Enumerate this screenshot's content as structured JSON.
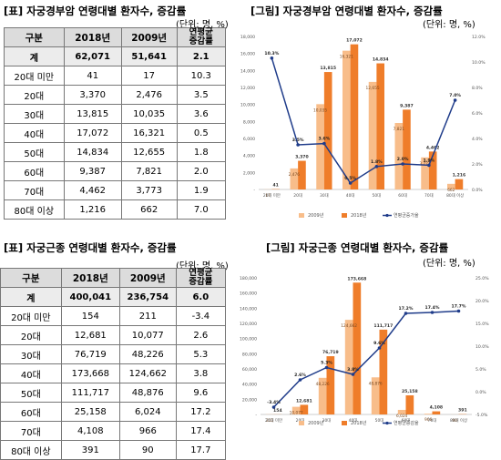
{
  "top_table": {
    "title": "[표] 자궁경부암 연령대별 환자수, 증감률",
    "unit": "(단위: 명, %)",
    "headers": [
      "구분",
      "2018년",
      "2009년",
      "연평균\n증감률"
    ],
    "total": [
      "계",
      "62,071",
      "51,641",
      "2.1"
    ],
    "rows": [
      [
        "20대 미만",
        "41",
        "17",
        "10.3"
      ],
      [
        "20대",
        "3,370",
        "2,476",
        "3.5"
      ],
      [
        "30대",
        "13,815",
        "10,035",
        "3.6"
      ],
      [
        "40대",
        "17,072",
        "16,321",
        "0.5"
      ],
      [
        "50대",
        "14,834",
        "12,655",
        "1.8"
      ],
      [
        "60대",
        "9,387",
        "7,821",
        "2.0"
      ],
      [
        "70대",
        "4,462",
        "3,773",
        "1.9"
      ],
      [
        "80대 이상",
        "1,216",
        "662",
        "7.0"
      ]
    ]
  },
  "bottom_table": {
    "title": "[표] 자궁근종 연령대별 환자수, 증감률",
    "unit": "(단위: 명, %)",
    "headers": [
      "구분",
      "2018년",
      "2009년",
      "연평균\n증감률"
    ],
    "total": [
      "계",
      "400,041",
      "236,754",
      "6.0"
    ],
    "rows": [
      [
        "20대 미만",
        "154",
        "211",
        "-3.4"
      ],
      [
        "20대",
        "12,681",
        "10,077",
        "2.6"
      ],
      [
        "30대",
        "76,719",
        "48,226",
        "5.3"
      ],
      [
        "40대",
        "173,668",
        "124,662",
        "3.8"
      ],
      [
        "50대",
        "111,717",
        "48,876",
        "9.6"
      ],
      [
        "60대",
        "25,158",
        "6,024",
        "17.2"
      ],
      [
        "70대",
        "4,108",
        "966",
        "17.4"
      ],
      [
        "80대 이상",
        "391",
        "90",
        "17.7"
      ]
    ]
  },
  "top_chart": {
    "title": "[그림] 자궁경부암 연령대별 환자수, 증감률",
    "unit": "(단위: 명, %)"
  },
  "bottom_chart": {
    "title": "[그림] 자궁근종 연령대별 환자수, 증감률",
    "unit": "(단위: 명, %)"
  },
  "chart_data": [
    {
      "type": "bar",
      "categories": [
        "20대 미만",
        "20대",
        "30대",
        "40대",
        "50대",
        "60대",
        "70대",
        "80대 이상"
      ],
      "series": [
        {
          "name": "2009년",
          "values": [
            17,
            2476,
            10035,
            16321,
            12655,
            7821,
            3773,
            662
          ],
          "color": "#f8bd8a"
        },
        {
          "name": "2018년",
          "values": [
            41,
            3370,
            13815,
            17072,
            14834,
            9387,
            4462,
            1216
          ],
          "color": "#ef7d2a"
        },
        {
          "name": "연평균증가율",
          "type": "line",
          "axis": "right",
          "values": [
            10.3,
            3.5,
            3.6,
            0.5,
            1.8,
            2.0,
            1.9,
            7.0
          ],
          "color": "#1f3c8a"
        }
      ],
      "bar_labels_2009": [
        "17",
        "2,476",
        "10,035",
        "16,321",
        "12,655",
        "7,821",
        "3,773",
        "662"
      ],
      "bar_labels_2018": [
        "41",
        "3,370",
        "13,815",
        "17,072",
        "14,834",
        "9,387",
        "4,462",
        "1,216"
      ],
      "line_labels": [
        "10.3%",
        "3.5%",
        "3.6%",
        "0.5%",
        "1.8%",
        "2.0%",
        "1.9%",
        "7.0%"
      ],
      "ylim": [
        0,
        18000
      ],
      "yticks": [
        "-",
        "2,000",
        "4,000",
        "6,000",
        "8,000",
        "10,000",
        "12,000",
        "14,000",
        "16,000",
        "18,000"
      ],
      "y2lim": [
        0,
        12
      ],
      "y2ticks": [
        "0.0%",
        "2.0%",
        "4.0%",
        "6.0%",
        "8.0%",
        "10.0%",
        "12.0%"
      ],
      "legend": [
        "2009년",
        "2018년",
        "연평균증가율"
      ],
      "legend_position": "bottom",
      "grid": false
    },
    {
      "type": "bar",
      "categories": [
        "20대 미만",
        "20대",
        "30대",
        "40대",
        "50대",
        "60대",
        "70대",
        "80대 이상"
      ],
      "series": [
        {
          "name": "2009년",
          "values": [
            211,
            10077,
            48226,
            124662,
            48876,
            6024,
            966,
            90
          ],
          "color": "#f8bd8a"
        },
        {
          "name": "2018년",
          "values": [
            154,
            12681,
            76719,
            173668,
            111717,
            25158,
            4108,
            391
          ],
          "color": "#ef7d2a"
        },
        {
          "name": "연평균증감율",
          "type": "line",
          "axis": "right",
          "values": [
            -3.4,
            2.6,
            5.3,
            3.8,
            9.6,
            17.2,
            17.4,
            17.7
          ],
          "color": "#1f3c8a"
        }
      ],
      "bar_labels_2009": [
        "211",
        "10,077",
        "48,226",
        "124,662",
        "48,876",
        "6,024",
        "966",
        "90"
      ],
      "bar_labels_2018": [
        "154",
        "12,681",
        "76,719",
        "173,668",
        "111,717",
        "25,158",
        "4,108",
        "391"
      ],
      "line_labels": [
        "-3.4%",
        "2.6%",
        "5.3%",
        "3.8%",
        "9.6%",
        "17.2%",
        "17.4%",
        "17.7%"
      ],
      "ylim": [
        0,
        180000
      ],
      "yticks": [
        "-",
        "20,000",
        "40,000",
        "60,000",
        "80,000",
        "100,000",
        "120,000",
        "140,000",
        "160,000",
        "180,000"
      ],
      "y2lim": [
        -5,
        25
      ],
      "y2ticks": [
        "-5.0%",
        "0.0%",
        "5.0%",
        "10.0%",
        "15.0%",
        "20.0%",
        "25.0%"
      ],
      "legend": [
        "2009년",
        "2018년",
        "연평균증감율"
      ],
      "legend_position": "bottom",
      "grid": false
    }
  ]
}
